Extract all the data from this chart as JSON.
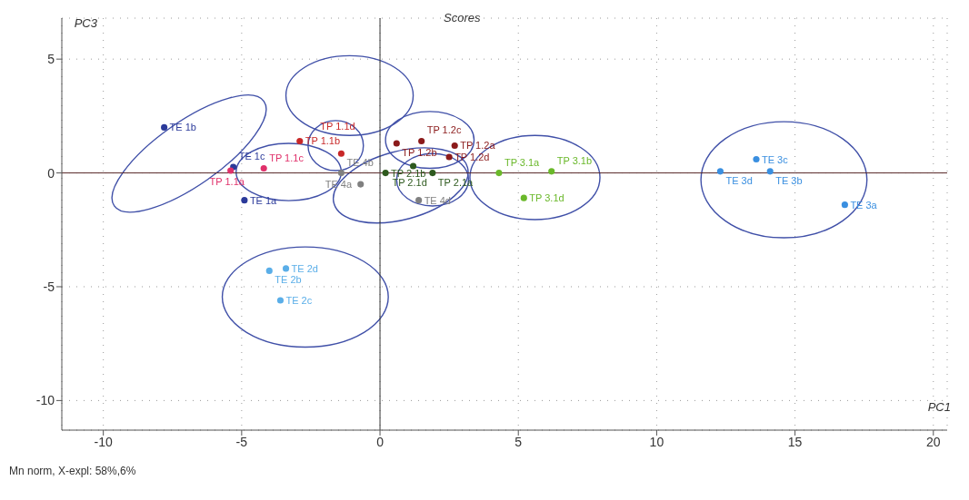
{
  "chart_data": {
    "type": "scatter",
    "title": "Scores",
    "xlabel": "PC1",
    "ylabel": "PC3",
    "annotations": [
      "Mn norm, X-expl: 58%,6%"
    ],
    "xlim": [
      -11.5,
      20.5
    ],
    "ylim": [
      -11.3,
      6.8
    ],
    "xticks": [
      -10,
      -5,
      0,
      5,
      10,
      15,
      20
    ],
    "yticks": [
      -10,
      -5,
      0,
      5
    ],
    "grid": true,
    "marker": "circle",
    "ref_lines": [
      {
        "axis": "x",
        "value": 0,
        "color": "#333333"
      },
      {
        "axis": "y",
        "value": 0,
        "color": "#5a2a2a"
      }
    ],
    "series": [
      {
        "color": "#2b3a9a",
        "x": [
          -7.8,
          -4.9,
          -5.3
        ],
        "values": [
          2.0,
          -1.2,
          0.26
        ],
        "value_labels": [
          "TE 1b",
          "TE 1a",
          "TE 1c"
        ]
      },
      {
        "color": "#5aaee8",
        "x": [
          -4.0,
          -3.4,
          -3.6
        ],
        "values": [
          -4.3,
          -4.2,
          -5.6
        ],
        "value_labels": [
          "TE 2b",
          "TE 2d",
          "TE 2c"
        ]
      },
      {
        "color": "#3a8fe0",
        "x": [
          12.3,
          13.6,
          14.1,
          16.8
        ],
        "values": [
          0.07,
          0.6,
          0.07,
          -1.4
        ],
        "value_labels": [
          "TE 3d",
          "TE 3c",
          "TE 3b",
          "TE 3a"
        ]
      },
      {
        "color": "#808080",
        "x": [
          -0.7,
          1.4,
          -1.4
        ],
        "values": [
          -0.5,
          -1.2,
          0.0
        ],
        "value_labels": [
          "TE 4a",
          "TE 4d",
          "TE 4b"
        ]
      },
      {
        "color": "#e0306a",
        "x": [
          -5.4,
          -4.2
        ],
        "values": [
          0.1,
          0.2
        ],
        "value_labels": [
          "TP 1.1a",
          "TP 1.1c"
        ]
      },
      {
        "color": "#c82828",
        "x": [
          -2.9,
          -1.4
        ],
        "values": [
          1.4,
          0.85
        ],
        "value_labels": [
          "TP 1.1b",
          "TP 1.1d"
        ]
      },
      {
        "color": "#8b1a1a",
        "x": [
          2.7,
          2.5,
          0.6,
          1.5
        ],
        "values": [
          1.2,
          0.7,
          1.3,
          1.4
        ],
        "value_labels": [
          "TP 1.2a",
          "TP 1.2d",
          "TP 1.2b",
          "TP 1.2c"
        ]
      },
      {
        "color": "#2e5a1e",
        "x": [
          1.2,
          1.9,
          0.2
        ],
        "values": [
          0.3,
          0.0,
          0.0
        ],
        "value_labels": [
          "TP 2.1d",
          "TP 2.1a",
          "TP 2.1b"
        ]
      },
      {
        "color": "#6ab82a",
        "x": [
          5.2,
          4.3,
          6.2
        ],
        "values": [
          -1.1,
          0.0,
          0.07
        ],
        "value_labels": [
          "TP 3.1d",
          "TP 3.1a",
          "TP 3.1b"
        ]
      }
    ]
  }
}
